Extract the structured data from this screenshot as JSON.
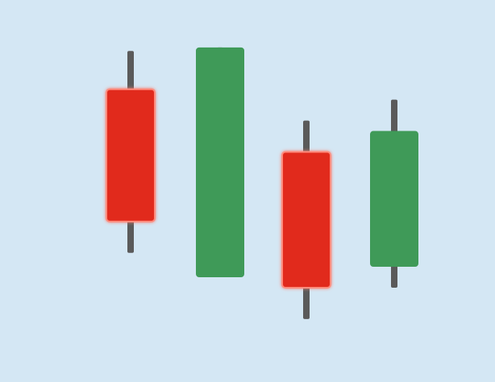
{
  "chart_data": {
    "type": "candlestick",
    "title": "",
    "xlabel": "",
    "ylabel": "",
    "ylim": [
      0,
      100
    ],
    "grid": false,
    "legend": "none",
    "colors": {
      "background": "#d4e7f4",
      "bullish": "#3f9a58",
      "bearish": "#e1291f",
      "wick": "#5a5a5a",
      "bearish_glow": "#ff8c7d"
    },
    "candles": [
      {
        "index": 1,
        "direction": "bearish",
        "open": 79,
        "high": 90,
        "low": 32,
        "close": 41
      },
      {
        "index": 2,
        "direction": "bullish",
        "open": 25,
        "high": 91,
        "low": 25,
        "close": 91
      },
      {
        "index": 3,
        "direction": "bearish",
        "open": 61,
        "high": 70,
        "low": 13,
        "close": 22
      },
      {
        "index": 4,
        "direction": "bullish",
        "open": 28,
        "high": 76,
        "low": 22,
        "close": 67
      }
    ]
  }
}
